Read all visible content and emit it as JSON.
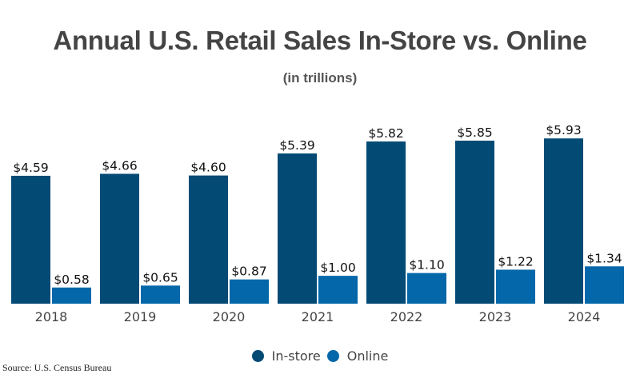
{
  "chart_data": {
    "type": "bar",
    "title": "Annual U.S. Retail Sales In-Store vs. Online",
    "subtitle": "(in trillions)",
    "xlabel": "",
    "ylabel": "",
    "ylim": [
      0,
      6.5
    ],
    "grid": false,
    "categories": [
      "2018",
      "2019",
      "2020",
      "2021",
      "2022",
      "2023",
      "2024"
    ],
    "series": [
      {
        "name": "In-store",
        "color": "#034a75",
        "values": [
          4.59,
          4.66,
          4.6,
          5.39,
          5.82,
          5.85,
          5.93
        ],
        "labels": [
          "$4.59",
          "$4.66",
          "$4.60",
          "$5.39",
          "$5.82",
          "$5.85",
          "$5.93"
        ]
      },
      {
        "name": "Online",
        "color": "#0367a9",
        "values": [
          0.58,
          0.65,
          0.87,
          1.0,
          1.1,
          1.22,
          1.34
        ],
        "labels": [
          "$0.58",
          "$0.65",
          "$0.87",
          "$1.00",
          "$1.10",
          "$1.22",
          "$1.34"
        ]
      }
    ],
    "legend_position": "bottom-center",
    "source": "Source: U.S. Census Bureau"
  }
}
